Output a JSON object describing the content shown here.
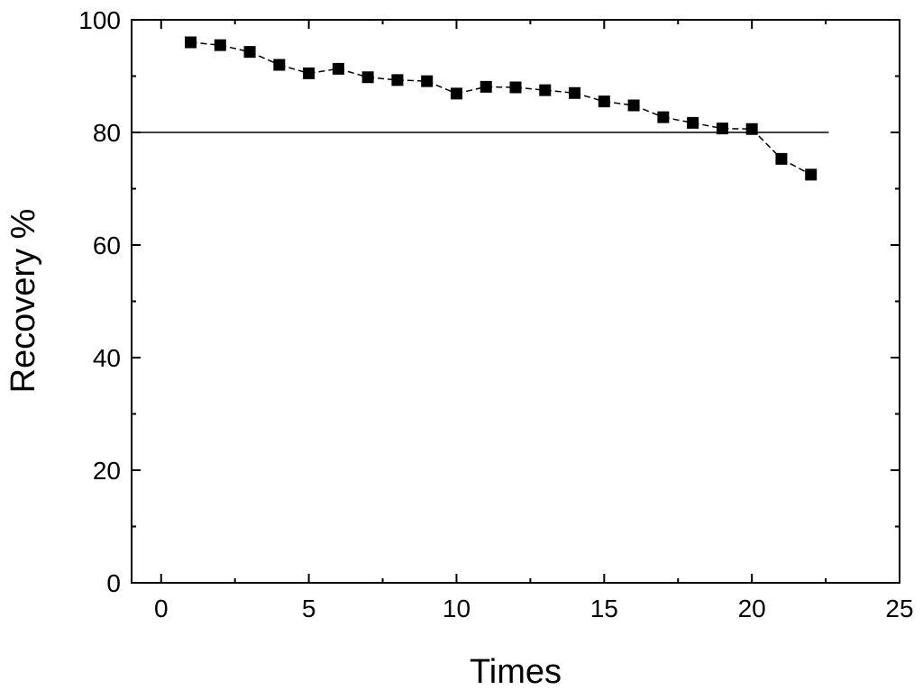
{
  "chart_data": {
    "type": "scatter",
    "title": "",
    "xlabel": "Times",
    "ylabel": "Recovery %",
    "xlim": [
      -1,
      25
    ],
    "ylim": [
      0,
      100
    ],
    "xticks": [
      "0",
      "5",
      "10",
      "15",
      "20",
      "25"
    ],
    "yticks": [
      "0",
      "20",
      "40",
      "60",
      "80",
      "100"
    ],
    "grid": false,
    "legend": "none",
    "colors": {
      "axis": "#000000",
      "marker": "#000000",
      "line": "#000000",
      "background": "#ffffff"
    },
    "reference_line": {
      "y": 80,
      "x_start": -1,
      "x_end": 22.6
    },
    "series": [
      {
        "marker": "square",
        "line_style": "dashed",
        "x": [
          1,
          2,
          3,
          4,
          5,
          6,
          7,
          8,
          9,
          10,
          11,
          12,
          13,
          14,
          15,
          16,
          17,
          18,
          19,
          20,
          21,
          22
        ],
        "y": [
          96.0,
          95.5,
          94.3,
          92.0,
          90.5,
          91.3,
          89.8,
          89.3,
          89.1,
          86.9,
          88.1,
          88.0,
          87.5,
          87.0,
          85.5,
          84.8,
          82.7,
          81.7,
          80.7,
          80.6,
          75.3,
          72.5
        ]
      }
    ]
  }
}
